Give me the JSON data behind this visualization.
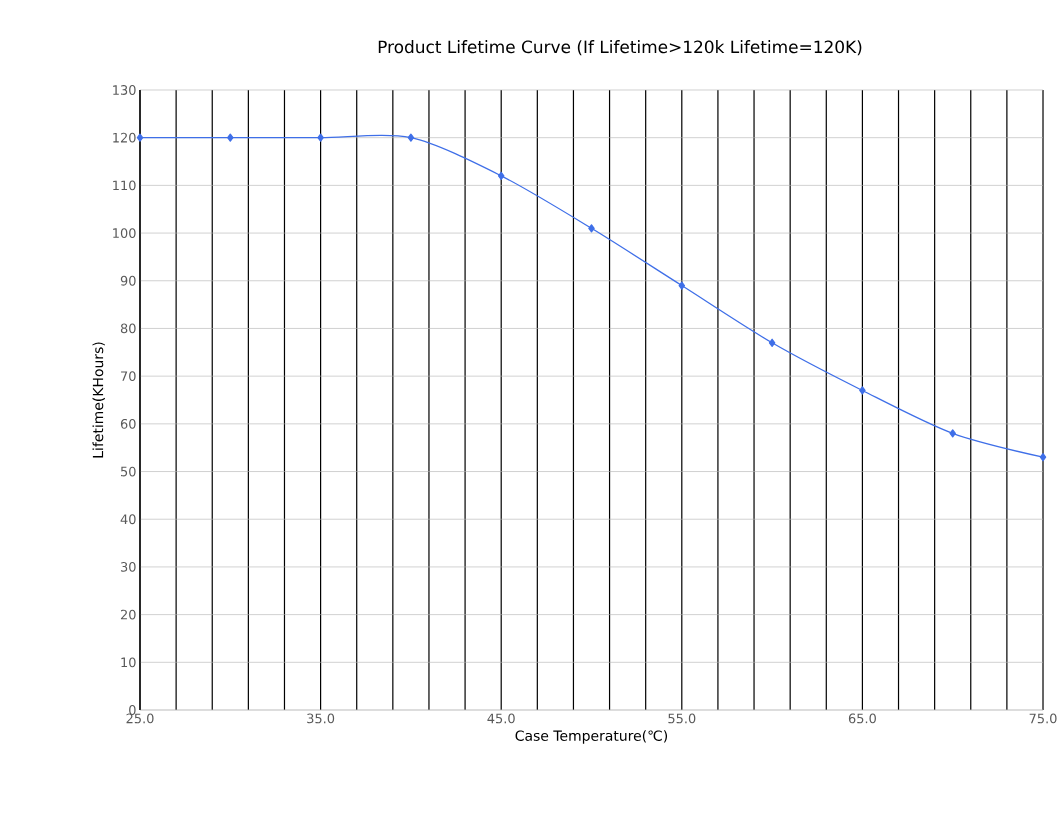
{
  "chart_data": {
    "type": "line",
    "title": "Product Lifetime Curve (If Lifetime>120k Lifetime=120K)",
    "xlabel": "Case Temperature(℃)",
    "ylabel": "Lifetime(KHours)",
    "x": [
      25,
      30,
      35,
      40,
      45,
      50,
      55,
      60,
      65,
      70,
      75
    ],
    "series": [
      {
        "color": "#3f6fe8",
        "values": [
          120,
          120,
          120,
          120,
          112,
          101,
          89,
          77,
          67,
          58,
          53
        ]
      }
    ],
    "xlim": [
      25,
      75
    ],
    "xticks": [
      {
        "value": 25,
        "label": "25.0"
      },
      {
        "value": 27,
        "label": null
      },
      {
        "value": 29,
        "label": null
      },
      {
        "value": 31,
        "label": null
      },
      {
        "value": 33,
        "label": null
      },
      {
        "value": 35,
        "label": "35.0"
      },
      {
        "value": 37,
        "label": null
      },
      {
        "value": 39,
        "label": null
      },
      {
        "value": 41,
        "label": null
      },
      {
        "value": 43,
        "label": null
      },
      {
        "value": 45,
        "label": "45.0"
      },
      {
        "value": 47,
        "label": null
      },
      {
        "value": 49,
        "label": null
      },
      {
        "value": 51,
        "label": null
      },
      {
        "value": 53,
        "label": null
      },
      {
        "value": 55,
        "label": "55.0"
      },
      {
        "value": 57,
        "label": null
      },
      {
        "value": 59,
        "label": null
      },
      {
        "value": 61,
        "label": null
      },
      {
        "value": 63,
        "label": null
      },
      {
        "value": 65,
        "label": "65.0"
      },
      {
        "value": 67,
        "label": null
      },
      {
        "value": 69,
        "label": null
      },
      {
        "value": 71,
        "label": null
      },
      {
        "value": 73,
        "label": null
      },
      {
        "value": 75,
        "label": "75.0"
      }
    ],
    "ylim": [
      0,
      130
    ],
    "yticks": [
      0,
      10,
      20,
      30,
      40,
      50,
      60,
      70,
      80,
      90,
      100,
      110,
      120,
      130
    ],
    "grid": true,
    "marker": "diamond",
    "line_style": "solid"
  }
}
